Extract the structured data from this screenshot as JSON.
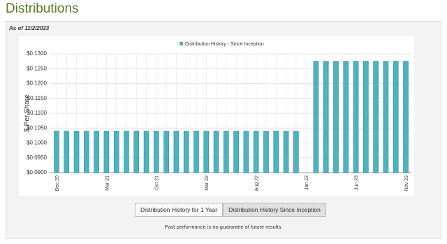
{
  "header": {
    "title": "Distributions"
  },
  "as_of": "As of 11/2/2023",
  "chart_data": {
    "type": "bar",
    "series": [
      {
        "name": "Distribution History - Since Inception",
        "color": "#4db3c1",
        "values": [
          0.104,
          0.104,
          0.104,
          0.104,
          0.104,
          0.104,
          0.104,
          0.104,
          0.104,
          0.104,
          0.104,
          0.104,
          0.104,
          0.104,
          0.104,
          0.104,
          0.104,
          0.104,
          0.104,
          0.104,
          0.104,
          0.104,
          0.104,
          0.104,
          0.104,
          null,
          0.1275,
          0.1275,
          0.1275,
          0.1275,
          0.1275,
          0.1275,
          0.1275,
          0.1275,
          0.1275,
          0.1275
        ]
      }
    ],
    "categories": [
      "Dec 20",
      null,
      null,
      null,
      null,
      "Mar 21",
      null,
      null,
      null,
      null,
      "Oct 21",
      null,
      null,
      null,
      null,
      "Mar 22",
      null,
      null,
      null,
      null,
      "Aug 22",
      null,
      null,
      null,
      null,
      "Jan 23",
      null,
      null,
      null,
      null,
      "Jun 23",
      null,
      null,
      null,
      null,
      "Nov 23"
    ],
    "y_label": "$ Per Share",
    "ylim": [
      0.09,
      0.13
    ],
    "yticks": [
      {
        "value": 0.09,
        "label": "$0.0900"
      },
      {
        "value": 0.095,
        "label": "$0.0950"
      },
      {
        "value": 0.1,
        "label": "$0.1000"
      },
      {
        "value": 0.105,
        "label": "$0.1050"
      },
      {
        "value": 0.11,
        "label": "$0.1100"
      },
      {
        "value": 0.115,
        "label": "$0.1150"
      },
      {
        "value": 0.12,
        "label": "$0.1200"
      },
      {
        "value": 0.125,
        "label": "$0.1250"
      },
      {
        "value": 0.13,
        "label": "$0.1300"
      }
    ],
    "grid": true
  },
  "buttons": [
    "Distribution History for 1 Year",
    "Distribution History Since Inception"
  ],
  "footnote": "Past performance is no guarantee of future results."
}
